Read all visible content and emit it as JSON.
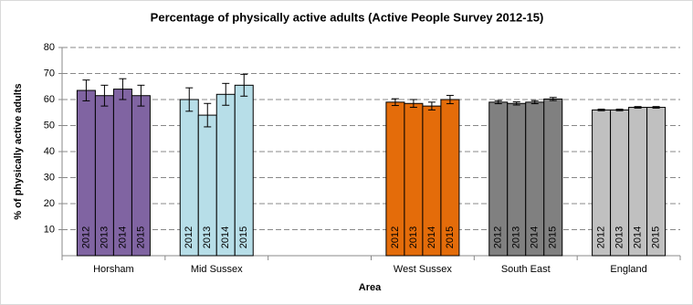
{
  "chart_data": {
    "type": "bar",
    "title": "Percentage of physically active adults (Active People Survey 2012-15)",
    "y_label": "% of physically  active adults",
    "x_label": "Area",
    "categories": [
      "Horsham",
      "Mid Sussex",
      null,
      "West Sussex",
      "South East",
      "England"
    ],
    "category_colors": [
      "#8064a2",
      "#b7dee8",
      null,
      "#e46c0a",
      "#808080",
      "#c0c0c0"
    ],
    "series": [
      {
        "name": "2012",
        "values": [
          63.5,
          60,
          null,
          59,
          59,
          56
        ],
        "errors": [
          4,
          4.5,
          null,
          1.3,
          0.6,
          0.3
        ]
      },
      {
        "name": "2013",
        "values": [
          61.5,
          54,
          null,
          58.5,
          58.5,
          56
        ],
        "errors": [
          4,
          4.5,
          null,
          1.5,
          0.6,
          0.3
        ]
      },
      {
        "name": "2014",
        "values": [
          64,
          62,
          null,
          57.5,
          59,
          57
        ],
        "errors": [
          4,
          4.2,
          null,
          1.5,
          0.6,
          0.3
        ]
      },
      {
        "name": "2015",
        "values": [
          61.5,
          65.5,
          null,
          60,
          60.2,
          57
        ],
        "errors": [
          4,
          4.2,
          null,
          1.6,
          0.6,
          0.3
        ]
      }
    ],
    "ylim": [
      0,
      80
    ],
    "yticks": [
      10,
      20,
      30,
      40,
      50,
      60,
      70,
      80
    ],
    "grid": true
  }
}
